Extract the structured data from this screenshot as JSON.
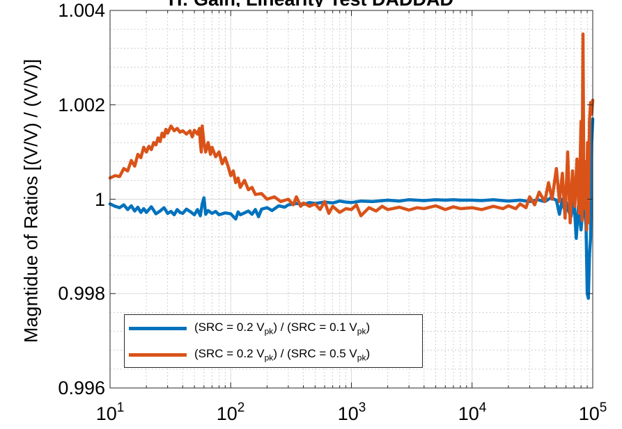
{
  "chart_data": {
    "type": "line",
    "title": "H: Gain, Linearity Test DADDAD",
    "ylabel": "Magntidue of Ratios [(V/V) / (V/V)]",
    "xlabel": "",
    "xscale": "log",
    "xlim": [
      10,
      100000
    ],
    "ylim": [
      0.996,
      1.004
    ],
    "xticks": [
      {
        "base": "10",
        "exp": "1"
      },
      {
        "base": "10",
        "exp": "2"
      },
      {
        "base": "10",
        "exp": "3"
      },
      {
        "base": "10",
        "exp": "4"
      },
      {
        "base": "10",
        "exp": "5"
      }
    ],
    "yticks": [
      "0.996",
      "0.998",
      "1",
      "1.002",
      "1.004"
    ],
    "grid": true,
    "legend_position": "bottom-left",
    "series": [
      {
        "name_parts": [
          "(SRC = 0.2 V",
          "pk",
          ") / (SRC = 0.1 V",
          "pk",
          ")"
        ],
        "color": "#0072BD",
        "x": [
          10,
          11,
          12,
          13,
          14,
          15,
          16,
          17,
          18,
          19,
          20,
          22,
          24,
          26,
          28,
          30,
          32,
          34,
          36,
          38,
          40,
          43,
          46,
          50,
          53,
          56,
          58,
          60,
          62,
          65,
          70,
          75,
          80,
          90,
          100,
          110,
          115,
          120,
          130,
          140,
          150,
          160,
          170,
          180,
          200,
          220,
          250,
          280,
          300,
          350,
          400,
          450,
          500,
          600,
          700,
          800,
          900,
          1000,
          1200,
          1500,
          2000,
          2500,
          3000,
          4000,
          5000,
          6000,
          7000,
          8000,
          10000,
          12000,
          15000,
          20000,
          25000,
          30000,
          35000,
          40000,
          45000,
          50000,
          53000,
          56000,
          58000,
          60000,
          63000,
          66000,
          70000,
          73000,
          76000,
          80000,
          84000,
          88000,
          90000,
          92000,
          94000,
          96000,
          98000,
          100000
        ],
        "y": [
          0.9999,
          0.99985,
          0.99982,
          0.99988,
          0.99978,
          0.99986,
          0.99975,
          0.99983,
          0.99972,
          0.9998,
          0.99972,
          0.99984,
          0.99969,
          0.99975,
          0.99982,
          0.9997,
          0.99974,
          0.99967,
          0.99978,
          0.99972,
          0.9997,
          0.99979,
          0.99974,
          0.99967,
          0.99978,
          0.99965,
          0.9999,
          1.00003,
          0.99968,
          0.99976,
          0.9997,
          0.99974,
          0.99967,
          0.99971,
          0.99969,
          0.99958,
          0.99973,
          0.99967,
          0.99971,
          0.99975,
          0.99968,
          0.99978,
          0.99963,
          0.99979,
          0.99982,
          0.99976,
          0.99986,
          0.99983,
          0.99988,
          0.99991,
          0.99989,
          0.99993,
          0.99991,
          0.99994,
          0.99992,
          0.99996,
          0.99994,
          0.99993,
          0.99996,
          0.99995,
          0.99998,
          0.99996,
          0.99999,
          0.99997,
          0.99999,
          0.99998,
          0.99999,
          0.99998,
          0.99998,
          0.99997,
          0.99999,
          0.99996,
          0.99998,
          0.99995,
          0.99999,
          0.99995,
          1.00003,
          0.99998,
          0.99968,
          1.0,
          0.9998,
          0.99995,
          0.99975,
          0.99963,
          0.99996,
          0.99917,
          0.99985,
          0.99935,
          1.0,
          0.99945,
          0.998,
          0.9979,
          0.99882,
          0.99918,
          1.0012,
          1.0017
        ]
      },
      {
        "name_parts": [
          "(SRC = 0.2 V",
          "pk",
          ") / (SRC = 0.5 V",
          "pk",
          ")"
        ],
        "color": "#D95319",
        "x": [
          10,
          11,
          12,
          13,
          14,
          15,
          16,
          17,
          18,
          19,
          20,
          21,
          22,
          23,
          24,
          25,
          26,
          27,
          28,
          29,
          30,
          32,
          34,
          36,
          38,
          40,
          43,
          46,
          48,
          50,
          53,
          55,
          56,
          57,
          58,
          60,
          62,
          65,
          68,
          70,
          75,
          80,
          85,
          90,
          95,
          100,
          105,
          110,
          115,
          120,
          130,
          140,
          150,
          160,
          180,
          200,
          230,
          260,
          300,
          330,
          350,
          380,
          400,
          450,
          500,
          550,
          600,
          650,
          700,
          800,
          900,
          1000,
          1100,
          1200,
          1400,
          1600,
          1800,
          2000,
          2500,
          3000,
          3500,
          4000,
          5000,
          6000,
          7000,
          8000,
          10000,
          12000,
          15000,
          18000,
          20000,
          23000,
          25000,
          28000,
          30000,
          33000,
          36000,
          40000,
          43000,
          46000,
          50000,
          53000,
          56000,
          59000,
          62000,
          65000,
          68000,
          71000,
          74000,
          77000,
          80000,
          81500,
          83000,
          84500,
          86000,
          87500,
          89000,
          90500,
          92000,
          94000,
          96000,
          98000,
          100000
        ],
        "y": [
          1.00045,
          1.0005,
          1.00048,
          1.00065,
          1.0006,
          1.00082,
          1.0007,
          1.00095,
          1.00088,
          1.0011,
          1.001,
          1.00112,
          1.00105,
          1.0012,
          1.00115,
          1.0013,
          1.00122,
          1.0014,
          1.00132,
          1.00148,
          1.0014,
          1.00155,
          1.00145,
          1.0015,
          1.00142,
          1.00145,
          1.00138,
          1.00145,
          1.00132,
          1.00146,
          1.00138,
          1.0015,
          1.0012,
          1.001,
          1.00155,
          1.0012,
          1.001,
          1.0012,
          1.00095,
          1.0011,
          1.0009,
          1.001,
          1.00075,
          1.00088,
          1.0007,
          1.0005,
          1.0006,
          1.00035,
          1.00045,
          1.00025,
          1.0004,
          1.0002,
          1.00025,
          1.0001,
          1.00012,
          1.0,
          1.00005,
          0.99995,
          1.0,
          0.99988,
          1.00005,
          0.99985,
          0.99992,
          0.99985,
          0.9999,
          0.99978,
          0.99995,
          0.9997,
          0.99985,
          0.99972,
          0.9998,
          0.99978,
          0.99988,
          0.99965,
          0.99982,
          0.99975,
          0.99985,
          0.99978,
          0.99983,
          0.99977,
          0.99982,
          0.9998,
          0.99986,
          0.99978,
          0.99984,
          0.9998,
          0.99982,
          0.99978,
          0.99985,
          0.9998,
          0.99986,
          0.9998,
          0.9999,
          0.99982,
          1.00005,
          0.99988,
          1.00015,
          0.99995,
          1.00035,
          1.0,
          1.00065,
          0.99995,
          1.00055,
          0.9996,
          1.001,
          0.9995,
          1.0006,
          0.99985,
          1.00085,
          0.9997,
          1.00165,
          0.99955,
          1.0035,
          1.0001,
          0.9998,
          1.0008,
          0.99935,
          1.0012,
          0.9995,
          1.00165,
          1.00205,
          1.0018,
          1.0021
        ]
      }
    ]
  }
}
